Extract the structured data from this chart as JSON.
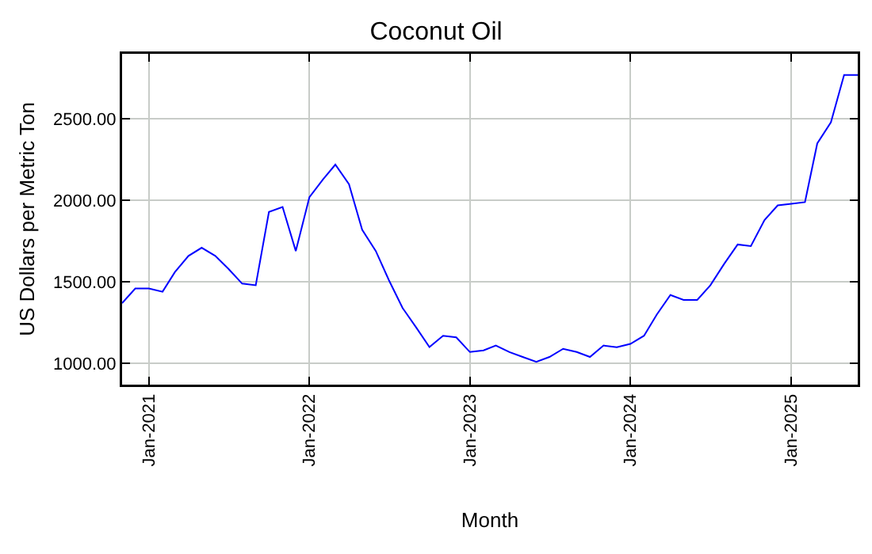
{
  "chart_data": {
    "type": "line",
    "title": "Coconut Oil",
    "xlabel": "Month",
    "ylabel": "US Dollars per Metric Ton",
    "x": [
      "2020-11",
      "2020-12",
      "2021-01",
      "2021-02",
      "2021-03",
      "2021-04",
      "2021-05",
      "2021-06",
      "2021-07",
      "2021-08",
      "2021-09",
      "2021-10",
      "2021-11",
      "2021-12",
      "2022-01",
      "2022-02",
      "2022-03",
      "2022-04",
      "2022-05",
      "2022-06",
      "2022-07",
      "2022-08",
      "2022-09",
      "2022-10",
      "2022-11",
      "2022-12",
      "2023-01",
      "2023-02",
      "2023-03",
      "2023-04",
      "2023-05",
      "2023-06",
      "2023-07",
      "2023-08",
      "2023-09",
      "2023-10",
      "2023-11",
      "2023-12",
      "2024-01",
      "2024-02",
      "2024-03",
      "2024-04",
      "2024-05",
      "2024-06",
      "2024-07",
      "2024-08",
      "2024-09",
      "2024-10",
      "2024-11",
      "2024-12",
      "2025-01",
      "2025-02",
      "2025-03",
      "2025-04",
      "2025-05",
      "2025-06"
    ],
    "series": [
      {
        "color": "#0000ff",
        "values": [
          1370,
          1460,
          1460,
          1440,
          1560,
          1660,
          1710,
          1660,
          1580,
          1490,
          1480,
          1930,
          1960,
          1690,
          2020,
          2130,
          2220,
          2100,
          1820,
          1690,
          1510,
          1340,
          1220,
          1100,
          1170,
          1160,
          1070,
          1080,
          1110,
          1070,
          1040,
          1010,
          1040,
          1090,
          1070,
          1040,
          1110,
          1100,
          1120,
          1170,
          1300,
          1420,
          1390,
          1390,
          1480,
          1610,
          1730,
          1720,
          1880,
          1970,
          1980,
          1990,
          2350,
          2480,
          2770,
          2770
        ]
      }
    ],
    "xlim": [
      "2020-11",
      "2025-06"
    ],
    "xticks": [
      {
        "value": "2021-01",
        "label": "Jan-2021"
      },
      {
        "value": "2022-01",
        "label": "Jan-2022"
      },
      {
        "value": "2023-01",
        "label": "Jan-2023"
      },
      {
        "value": "2024-01",
        "label": "Jan-2024"
      },
      {
        "value": "2025-01",
        "label": "Jan-2025"
      }
    ],
    "ylim": [
      870,
      2900
    ],
    "yticks": [
      {
        "value": 1000,
        "label": "1000.00"
      },
      {
        "value": 1500,
        "label": "1500.00"
      },
      {
        "value": 2000,
        "label": "2000.00"
      },
      {
        "value": 2500,
        "label": "2500.00"
      }
    ],
    "grid": true,
    "marker": "none",
    "line_style": "solid"
  }
}
